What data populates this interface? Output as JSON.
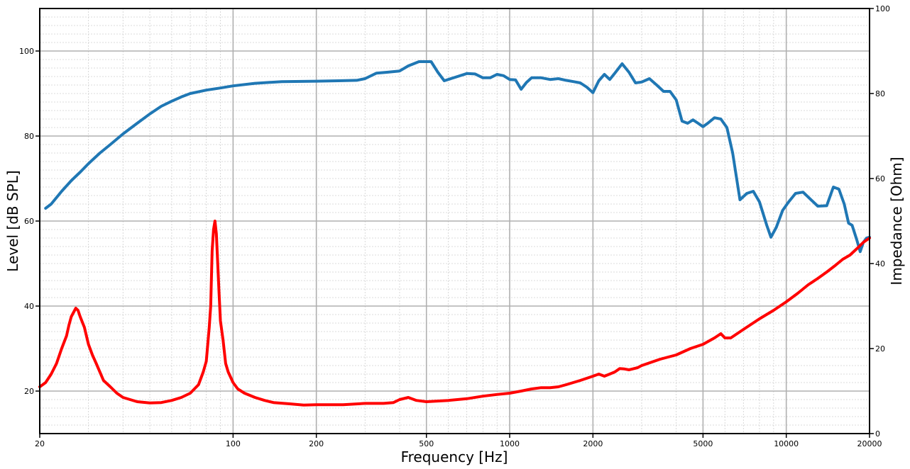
{
  "chart_data": {
    "type": "line",
    "title": "",
    "xlabel": "Frequency [Hz]",
    "ylabel_left": "Level [dB SPL]",
    "ylabel_right": "Impedance [Ohm]",
    "x_scale": "log",
    "xlim": [
      20,
      20000
    ],
    "ylim_left": [
      10,
      110
    ],
    "ylim_right": [
      0,
      100
    ],
    "grid": true,
    "x_ticks": [
      "20",
      "100",
      "200",
      "500",
      "1000",
      "2000",
      "5000",
      "10000",
      "20000"
    ],
    "y_ticks_left": [
      "20",
      "40",
      "60",
      "80",
      "100"
    ],
    "y_ticks_right": [
      "0",
      "20",
      "40",
      "60",
      "80",
      "100"
    ],
    "series": [
      {
        "axis": "left",
        "color": "#1f77b4",
        "points": [
          [
            21,
            63
          ],
          [
            22,
            64
          ],
          [
            24,
            67
          ],
          [
            26,
            69.5
          ],
          [
            28,
            71.5
          ],
          [
            30,
            73.5
          ],
          [
            33,
            76
          ],
          [
            36,
            78
          ],
          [
            40,
            80.5
          ],
          [
            45,
            83
          ],
          [
            50,
            85.2
          ],
          [
            55,
            87
          ],
          [
            60,
            88.2
          ],
          [
            65,
            89.2
          ],
          [
            70,
            90
          ],
          [
            80,
            90.8
          ],
          [
            90,
            91.3
          ],
          [
            100,
            91.8
          ],
          [
            120,
            92.4
          ],
          [
            150,
            92.8
          ],
          [
            200,
            92.9
          ],
          [
            240,
            93
          ],
          [
            280,
            93.1
          ],
          [
            300,
            93.5
          ],
          [
            330,
            94.8
          ],
          [
            360,
            95
          ],
          [
            400,
            95.3
          ],
          [
            430,
            96.5
          ],
          [
            470,
            97.5
          ],
          [
            520,
            97.5
          ],
          [
            550,
            95
          ],
          [
            580,
            93
          ],
          [
            620,
            93.6
          ],
          [
            700,
            94.7
          ],
          [
            750,
            94.6
          ],
          [
            800,
            93.7
          ],
          [
            850,
            93.7
          ],
          [
            900,
            94.5
          ],
          [
            950,
            94.2
          ],
          [
            1000,
            93.3
          ],
          [
            1050,
            93.2
          ],
          [
            1100,
            91
          ],
          [
            1150,
            92.6
          ],
          [
            1200,
            93.7
          ],
          [
            1300,
            93.7
          ],
          [
            1400,
            93.3
          ],
          [
            1500,
            93.5
          ],
          [
            1600,
            93.1
          ],
          [
            1700,
            92.8
          ],
          [
            1800,
            92.5
          ],
          [
            1900,
            91.5
          ],
          [
            2000,
            90.2
          ],
          [
            2100,
            93
          ],
          [
            2200,
            94.5
          ],
          [
            2300,
            93.3
          ],
          [
            2400,
            94.8
          ],
          [
            2550,
            97
          ],
          [
            2700,
            95
          ],
          [
            2850,
            92.5
          ],
          [
            3000,
            92.7
          ],
          [
            3200,
            93.5
          ],
          [
            3400,
            92
          ],
          [
            3600,
            90.5
          ],
          [
            3800,
            90.5
          ],
          [
            4000,
            88.5
          ],
          [
            4200,
            83.5
          ],
          [
            4400,
            83
          ],
          [
            4600,
            83.8
          ],
          [
            4800,
            83
          ],
          [
            5000,
            82.2
          ],
          [
            5200,
            83
          ],
          [
            5500,
            84.3
          ],
          [
            5800,
            84
          ],
          [
            6100,
            82
          ],
          [
            6400,
            76
          ],
          [
            6800,
            65
          ],
          [
            7200,
            66.5
          ],
          [
            7600,
            67
          ],
          [
            8000,
            64.5
          ],
          [
            8500,
            59
          ],
          [
            8800,
            56.2
          ],
          [
            9200,
            58.5
          ],
          [
            9700,
            62.5
          ],
          [
            10200,
            64.5
          ],
          [
            10800,
            66.5
          ],
          [
            11500,
            66.8
          ],
          [
            12200,
            65.2
          ],
          [
            13000,
            63.5
          ],
          [
            14000,
            63.6
          ],
          [
            14800,
            68
          ],
          [
            15500,
            67.5
          ],
          [
            16200,
            64
          ],
          [
            16800,
            59.5
          ],
          [
            17300,
            59
          ],
          [
            18000,
            55.5
          ],
          [
            18500,
            52.8
          ],
          [
            19000,
            55
          ],
          [
            19500,
            56
          ],
          [
            20000,
            56.2
          ]
        ]
      },
      {
        "axis": "right",
        "color": "#ff0000",
        "points": [
          [
            20,
            11
          ],
          [
            21,
            12
          ],
          [
            22,
            14
          ],
          [
            23,
            16.5
          ],
          [
            24,
            20
          ],
          [
            25,
            23
          ],
          [
            25.5,
            25.5
          ],
          [
            26,
            27.5
          ],
          [
            27,
            29.5
          ],
          [
            27.5,
            29
          ],
          [
            28,
            27.5
          ],
          [
            29,
            25
          ],
          [
            30,
            21
          ],
          [
            31,
            18.5
          ],
          [
            32,
            16.5
          ],
          [
            34,
            12.5
          ],
          [
            36,
            11
          ],
          [
            38,
            9.5
          ],
          [
            40,
            8.5
          ],
          [
            45,
            7.5
          ],
          [
            50,
            7.2
          ],
          [
            55,
            7.3
          ],
          [
            60,
            7.8
          ],
          [
            65,
            8.5
          ],
          [
            70,
            9.5
          ],
          [
            75,
            11.5
          ],
          [
            78,
            14.5
          ],
          [
            80,
            17
          ],
          [
            82,
            25
          ],
          [
            83,
            30
          ],
          [
            84,
            43
          ],
          [
            85,
            48
          ],
          [
            86,
            50
          ],
          [
            87,
            47
          ],
          [
            88,
            40
          ],
          [
            89,
            33
          ],
          [
            90,
            26.5
          ],
          [
            92,
            22
          ],
          [
            94,
            16.5
          ],
          [
            96,
            14.5
          ],
          [
            100,
            12
          ],
          [
            104,
            10.5
          ],
          [
            110,
            9.5
          ],
          [
            120,
            8.5
          ],
          [
            130,
            7.8
          ],
          [
            140,
            7.3
          ],
          [
            160,
            7
          ],
          [
            180,
            6.7
          ],
          [
            200,
            6.8
          ],
          [
            250,
            6.8
          ],
          [
            300,
            7.1
          ],
          [
            350,
            7.1
          ],
          [
            380,
            7.3
          ],
          [
            400,
            8
          ],
          [
            430,
            8.5
          ],
          [
            460,
            7.8
          ],
          [
            500,
            7.5
          ],
          [
            600,
            7.8
          ],
          [
            700,
            8.2
          ],
          [
            800,
            8.8
          ],
          [
            900,
            9.2
          ],
          [
            1000,
            9.5
          ],
          [
            1100,
            10
          ],
          [
            1200,
            10.5
          ],
          [
            1300,
            10.8
          ],
          [
            1400,
            10.8
          ],
          [
            1500,
            11
          ],
          [
            1600,
            11.5
          ],
          [
            1800,
            12.5
          ],
          [
            2000,
            13.5
          ],
          [
            2100,
            14
          ],
          [
            2200,
            13.5
          ],
          [
            2300,
            14
          ],
          [
            2400,
            14.5
          ],
          [
            2500,
            15.3
          ],
          [
            2600,
            15.2
          ],
          [
            2700,
            15
          ],
          [
            2900,
            15.5
          ],
          [
            3000,
            16
          ],
          [
            3500,
            17.5
          ],
          [
            4000,
            18.5
          ],
          [
            4500,
            20
          ],
          [
            5000,
            21
          ],
          [
            5500,
            22.5
          ],
          [
            5800,
            23.5
          ],
          [
            6000,
            22.5
          ],
          [
            6300,
            22.5
          ],
          [
            7000,
            24.5
          ],
          [
            8000,
            27
          ],
          [
            9000,
            29
          ],
          [
            10000,
            31
          ],
          [
            11000,
            33
          ],
          [
            12000,
            35
          ],
          [
            13000,
            36.5
          ],
          [
            14000,
            38
          ],
          [
            15000,
            39.5
          ],
          [
            16000,
            41
          ],
          [
            17000,
            42
          ],
          [
            18000,
            43.5
          ],
          [
            19000,
            45
          ],
          [
            20000,
            46
          ]
        ]
      }
    ]
  }
}
